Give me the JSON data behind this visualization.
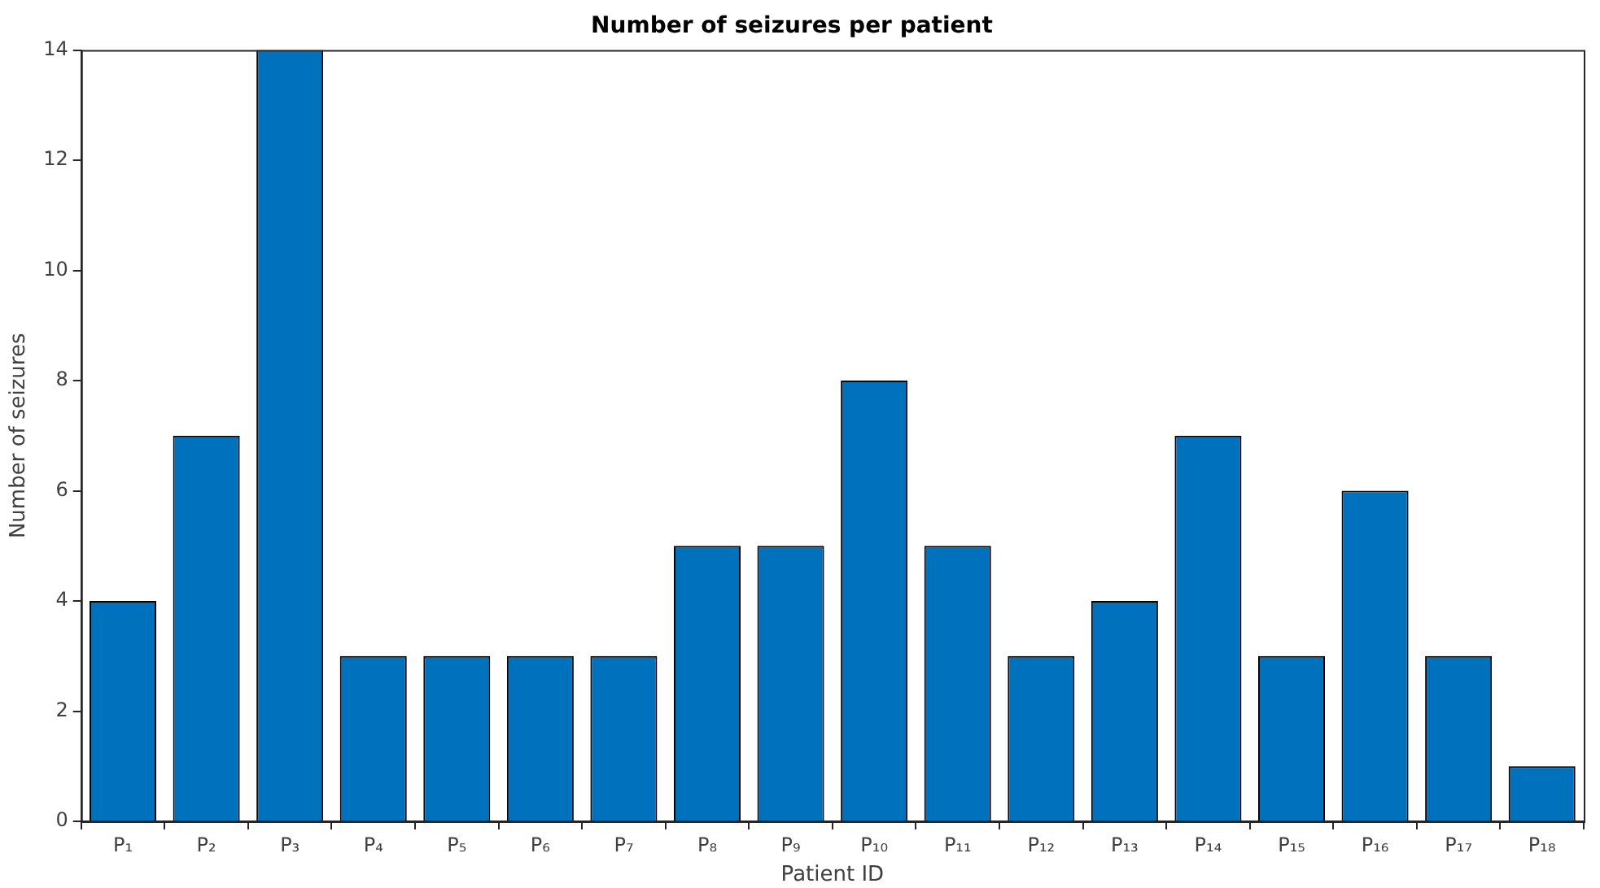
{
  "chart_data": {
    "type": "bar",
    "title": "Number of seizures per patient",
    "xlabel": "Patient ID",
    "ylabel": "Number of seizures",
    "categories": [
      "P₁",
      "P₂",
      "P₃",
      "P₄",
      "P₅",
      "P₆",
      "P₇",
      "P₈",
      "P₉",
      "P₁₀",
      "P₁₁",
      "P₁₂",
      "P₁₃",
      "P₁₄",
      "P₁₅",
      "P₁₆",
      "P₁₇",
      "P₁₈"
    ],
    "values": [
      4,
      7,
      14,
      3,
      3,
      3,
      3,
      5,
      5,
      8,
      5,
      3,
      4,
      7,
      3,
      6,
      3,
      1
    ],
    "color": "#0072bd",
    "ylim": [
      0,
      14
    ],
    "yticks": [
      0,
      2,
      4,
      6,
      8,
      10,
      12,
      14
    ],
    "grid": false,
    "legend": false
  }
}
